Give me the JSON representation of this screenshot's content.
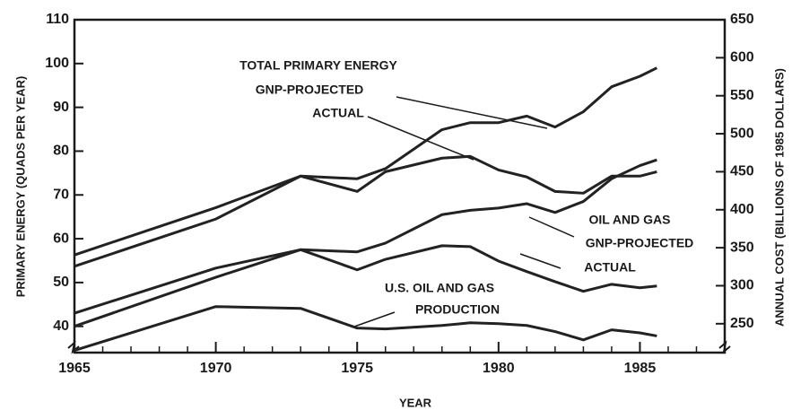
{
  "chart_data": {
    "type": "line",
    "x": [
      1965,
      1970,
      1973,
      1975,
      1976,
      1978,
      1979,
      1980,
      1981,
      1982,
      1983,
      1984,
      1985,
      1985.6
    ],
    "series": [
      {
        "color": "#222222",
        "values": [
          56.3,
          67.1,
          74.3,
          73.7,
          76,
          84.9,
          86.5,
          86.5,
          88,
          85.5,
          89,
          94.7,
          97.1,
          99
        ]
      },
      {
        "color": "#222222",
        "values": [
          53.7,
          64.5,
          74.3,
          70.8,
          75.3,
          78.4,
          78.8,
          75.7,
          74.1,
          70.8,
          70.4,
          74.3,
          74.3,
          75.3
        ]
      },
      {
        "color": "#222222",
        "values": [
          43,
          53.3,
          57.5,
          57,
          59,
          65.5,
          66.5,
          67,
          68,
          66,
          68.5,
          73.7,
          76.7,
          78
        ]
      },
      {
        "color": "#222222",
        "values": [
          40,
          51.2,
          57.5,
          52.9,
          55.3,
          58.4,
          58.2,
          54.9,
          52.5,
          50.2,
          48,
          49.6,
          48.8,
          49.2
        ]
      },
      {
        "color": "#222222",
        "values": [
          34.5,
          44.5,
          44.1,
          39.6,
          39.4,
          40.2,
          40.8,
          40.6,
          40.2,
          38.8,
          36.9,
          39.2,
          38.5,
          37.8
        ]
      }
    ],
    "xlim": [
      1965,
      1988
    ],
    "xticks": [
      1965,
      1970,
      1975,
      1980,
      1985
    ],
    "ylim": [
      34,
      110
    ],
    "yticks": [
      40,
      50,
      60,
      70,
      80,
      90,
      100,
      110
    ],
    "y2lim": [
      212,
      650
    ],
    "y2ticks": [
      250,
      300,
      350,
      400,
      450,
      500,
      550,
      600,
      650
    ],
    "xlabel": "YEAR",
    "ylabel": "PRIMARY ENERGY (QUADS PER YEAR)",
    "y2label": "ANNUAL COST (BILLIONS OF 1985 DOLLARS)",
    "annotations": [
      "TOTAL PRIMARY ENERGY",
      "GNP-PROJECTED",
      "ACTUAL",
      "OIL AND GAS",
      "GNP-PROJECTED",
      "ACTUAL",
      "U.S. OIL AND GAS",
      "PRODUCTION"
    ]
  }
}
